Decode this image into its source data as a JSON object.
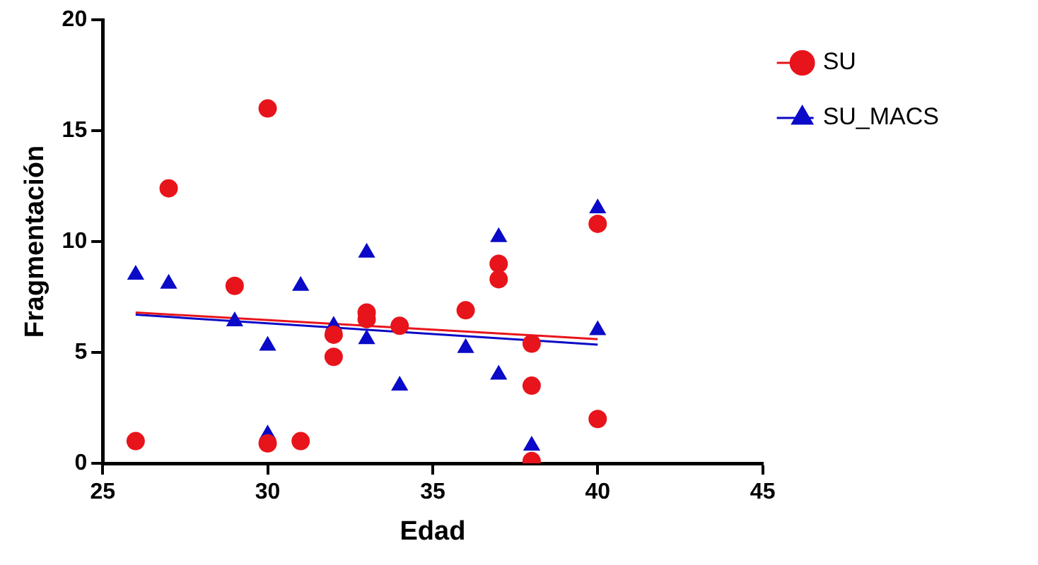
{
  "chart_data": {
    "type": "scatter",
    "xlabel": "Edad",
    "ylabel": "Fragmentación",
    "xlim": [
      25,
      45
    ],
    "xticks": [
      25,
      30,
      35,
      40,
      45
    ],
    "ylim": [
      0,
      20
    ],
    "yticks": [
      0,
      5,
      10,
      15,
      20
    ],
    "grid": false,
    "legend": "top right",
    "series": [
      {
        "name": "SU",
        "color": "#e8141b",
        "marker": "circle",
        "x": [
          26,
          27,
          29,
          30,
          30,
          31,
          32,
          32,
          33,
          33,
          34,
          36,
          37,
          37,
          38,
          38,
          38,
          40,
          40
        ],
        "values": [
          1.0,
          12.4,
          8.0,
          16.0,
          0.9,
          1.0,
          5.8,
          4.8,
          6.8,
          6.5,
          6.2,
          6.9,
          9.0,
          8.3,
          5.4,
          3.5,
          0.1,
          10.8,
          2.0
        ]
      },
      {
        "name": "SU_MACS",
        "color": "#0a0ac8",
        "marker": "triangle",
        "x": [
          26,
          27,
          29,
          30,
          30,
          31,
          32,
          33,
          33,
          34,
          36,
          37,
          37,
          38,
          40,
          40
        ],
        "values": [
          8.5,
          8.1,
          6.4,
          5.3,
          1.3,
          8.0,
          6.2,
          9.5,
          5.6,
          3.5,
          5.2,
          10.2,
          4.0,
          0.8,
          11.5,
          6.0
        ]
      },
      {
        "type": "line",
        "color": "#e8141b",
        "marker": "none",
        "x": [
          26,
          40
        ],
        "values": [
          6.8,
          5.6
        ]
      },
      {
        "type": "line",
        "color": "#0a0ac8",
        "marker": "none",
        "x": [
          26,
          40
        ],
        "values": [
          6.7,
          5.35
        ]
      }
    ]
  }
}
